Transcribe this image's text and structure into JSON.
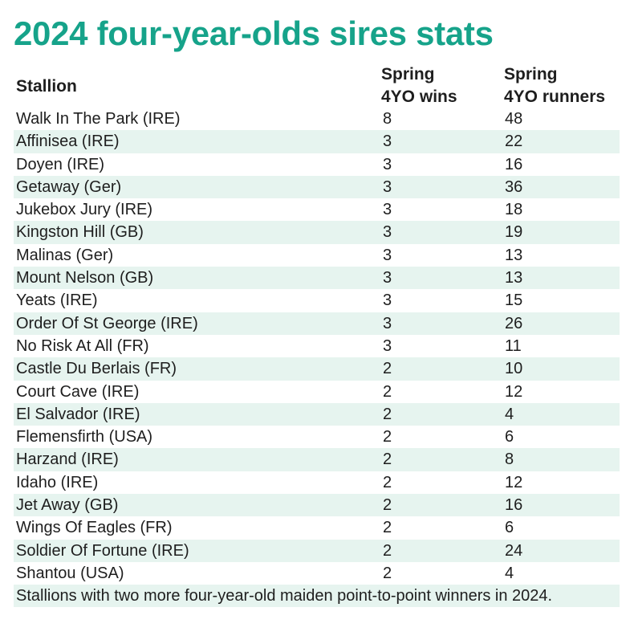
{
  "title": "2024 four-year-olds sires stats",
  "headers": {
    "stallion": "Stallion",
    "wins_line1": "Spring",
    "wins_line2": "4YO wins",
    "runners_line1": "Spring",
    "runners_line2": "4YO runners"
  },
  "rows": [
    {
      "stallion": "Walk In The Park (IRE)",
      "wins": "8",
      "runners": "48"
    },
    {
      "stallion": "Affinisea (IRE)",
      "wins": "3",
      "runners": "22"
    },
    {
      "stallion": "Doyen (IRE)",
      "wins": "3",
      "runners": "16"
    },
    {
      "stallion": "Getaway (Ger)",
      "wins": "3",
      "runners": "36"
    },
    {
      "stallion": "Jukebox Jury (IRE)",
      "wins": "3",
      "runners": "18"
    },
    {
      "stallion": "Kingston Hill (GB)",
      "wins": "3",
      "runners": "19"
    },
    {
      "stallion": "Malinas (Ger)",
      "wins": "3",
      "runners": "13"
    },
    {
      "stallion": "Mount Nelson (GB)",
      "wins": "3",
      "runners": "13"
    },
    {
      "stallion": "Yeats (IRE)",
      "wins": "3",
      "runners": "15"
    },
    {
      "stallion": "Order Of St George (IRE)",
      "wins": "3",
      "runners": "26"
    },
    {
      "stallion": "No Risk At All (FR)",
      "wins": "3",
      "runners": "11"
    },
    {
      "stallion": "Castle Du Berlais (FR)",
      "wins": "2",
      "runners": "10"
    },
    {
      "stallion": "Court Cave (IRE)",
      "wins": "2",
      "runners": "12"
    },
    {
      "stallion": "El Salvador (IRE)",
      "wins": "2",
      "runners": "4"
    },
    {
      "stallion": "Flemensfirth (USA)",
      "wins": "2",
      "runners": "6"
    },
    {
      "stallion": "Harzand (IRE)",
      "wins": "2",
      "runners": "8"
    },
    {
      "stallion": "Idaho (IRE)",
      "wins": "2",
      "runners": "12"
    },
    {
      "stallion": "Jet Away (GB)",
      "wins": "2",
      "runners": "16"
    },
    {
      "stallion": "Wings Of Eagles (FR)",
      "wins": "2",
      "runners": "6"
    },
    {
      "stallion": "Soldier Of Fortune (IRE)",
      "wins": "2",
      "runners": "24"
    },
    {
      "stallion": "Shantou (USA)",
      "wins": "2",
      "runners": "4"
    }
  ],
  "footnote": "Stallions with two more four-year-old maiden point-to-point winners in 2024.",
  "colors": {
    "title": "#16a38a",
    "stripe": "#e6f4ef",
    "text": "#1e1e1e"
  }
}
